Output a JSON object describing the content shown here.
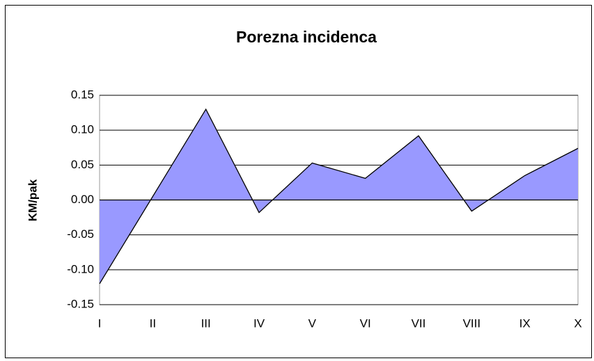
{
  "chart_data": {
    "type": "area",
    "title": "Porezna incidenca",
    "y_label": "KM/pak",
    "categories": [
      "I",
      "II",
      "III",
      "IV",
      "V",
      "VI",
      "VII",
      "VIII",
      "IX",
      "X"
    ],
    "values": [
      -0.12,
      0.005,
      0.13,
      -0.018,
      0.053,
      0.031,
      0.092,
      -0.016,
      0.035,
      0.074
    ],
    "color": "#9999ff",
    "ylim": [
      -0.15,
      0.15
    ],
    "yticks": [
      -0.15,
      {
        "value": -0.1,
        "label": "-0.10"
      },
      -0.05,
      {
        "value": 0,
        "label": "0.00"
      },
      0.05,
      {
        "value": 0.1,
        "label": "0.10"
      },
      0.15
    ],
    "grid": true
  }
}
